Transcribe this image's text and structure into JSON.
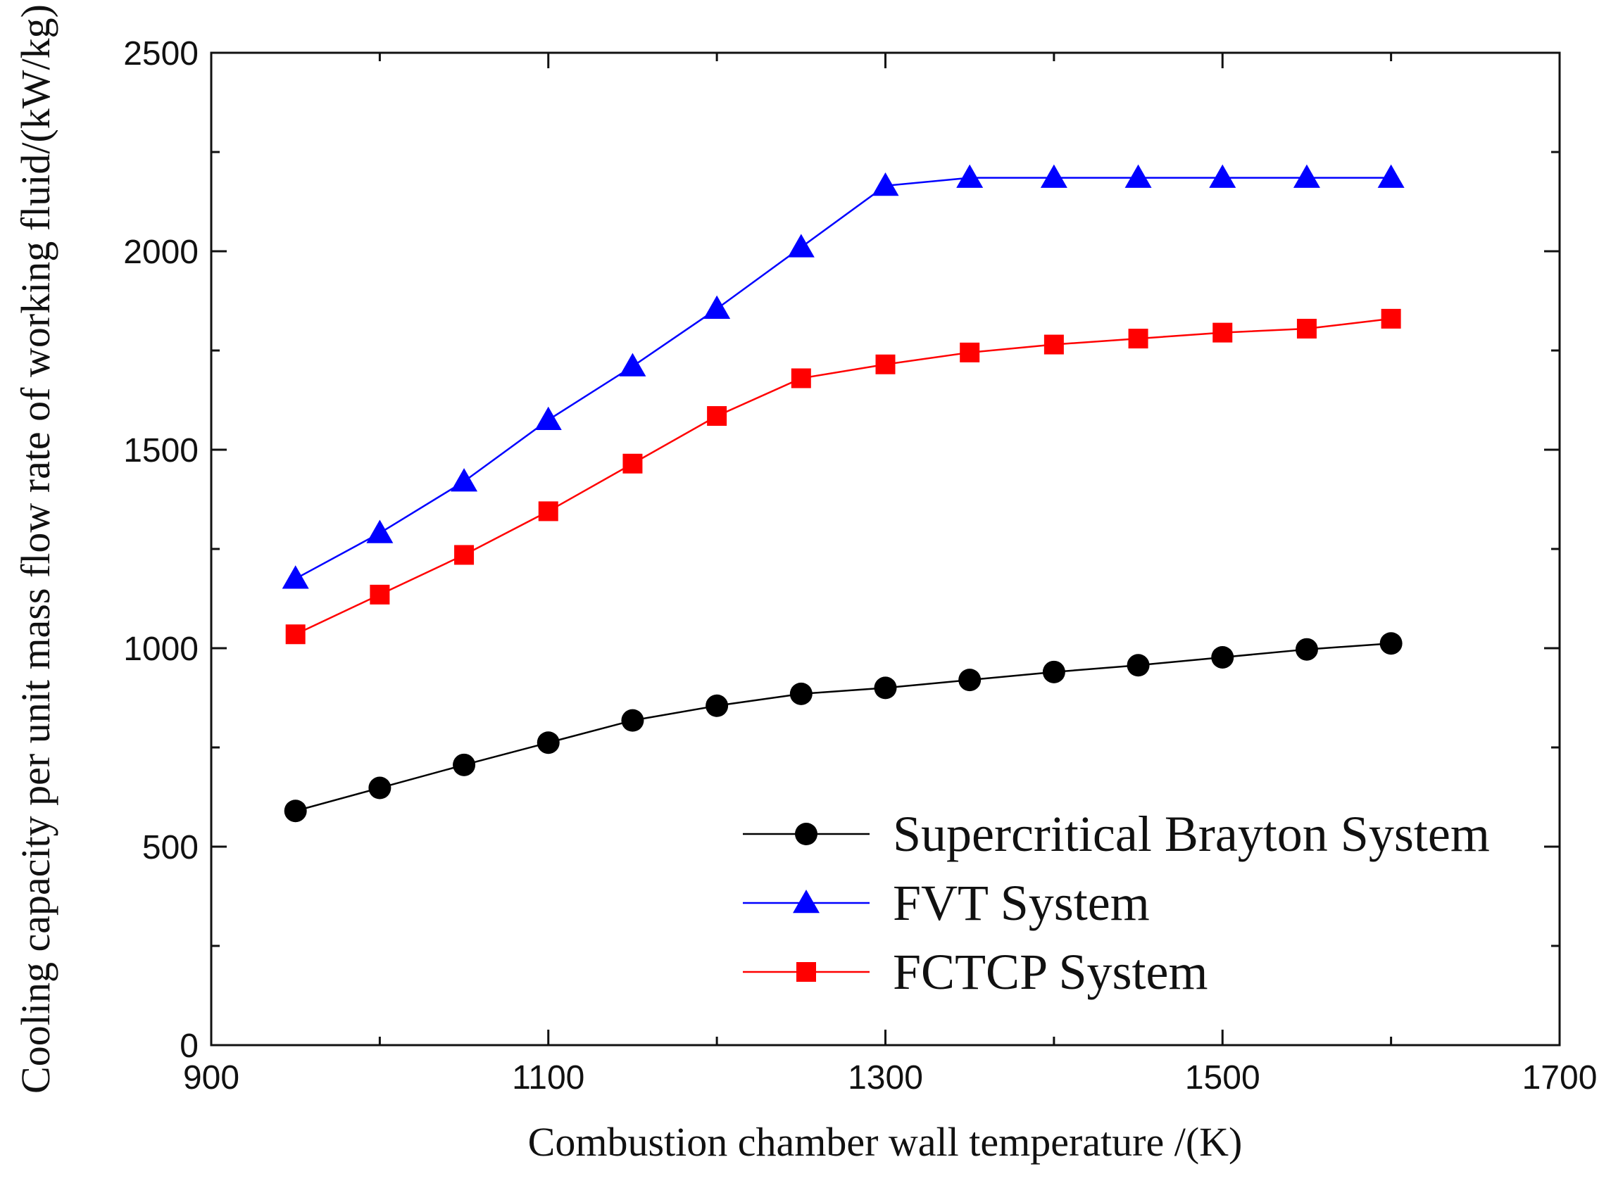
{
  "chart_data": {
    "type": "line",
    "title": "",
    "xlabel": "Combustion chamber wall temperature /(K)",
    "ylabel": "Cooling capacity per unit mass flow rate of working fluid/(kW/kg)",
    "xlim": [
      900,
      1700
    ],
    "ylim": [
      0,
      2500
    ],
    "xticks": [
      900,
      1100,
      1300,
      1500,
      1700
    ],
    "yticks": [
      0,
      500,
      1000,
      1500,
      2000,
      2500
    ],
    "grid": false,
    "legend_position": "bottom-right",
    "x": [
      950,
      1000,
      1050,
      1100,
      1150,
      1200,
      1250,
      1300,
      1350,
      1400,
      1450,
      1500,
      1550,
      1600
    ],
    "series": [
      {
        "name": "Supercritical Brayton System",
        "color": "#000000",
        "marker": "circle",
        "values": [
          590,
          648,
          706,
          762,
          818,
          855,
          885,
          900,
          920,
          940,
          957,
          977,
          997,
          1012
        ]
      },
      {
        "name": "FVT System",
        "color": "#0000ff",
        "marker": "triangle",
        "values": [
          1175,
          1290,
          1420,
          1575,
          1710,
          1855,
          2010,
          2165,
          2185,
          2185,
          2185,
          2185,
          2185,
          2185
        ]
      },
      {
        "name": "FCTCP System",
        "color": "#ff0000",
        "marker": "square",
        "values": [
          1035,
          1135,
          1235,
          1345,
          1465,
          1585,
          1680,
          1715,
          1745,
          1765,
          1780,
          1795,
          1805,
          1830
        ]
      }
    ]
  }
}
